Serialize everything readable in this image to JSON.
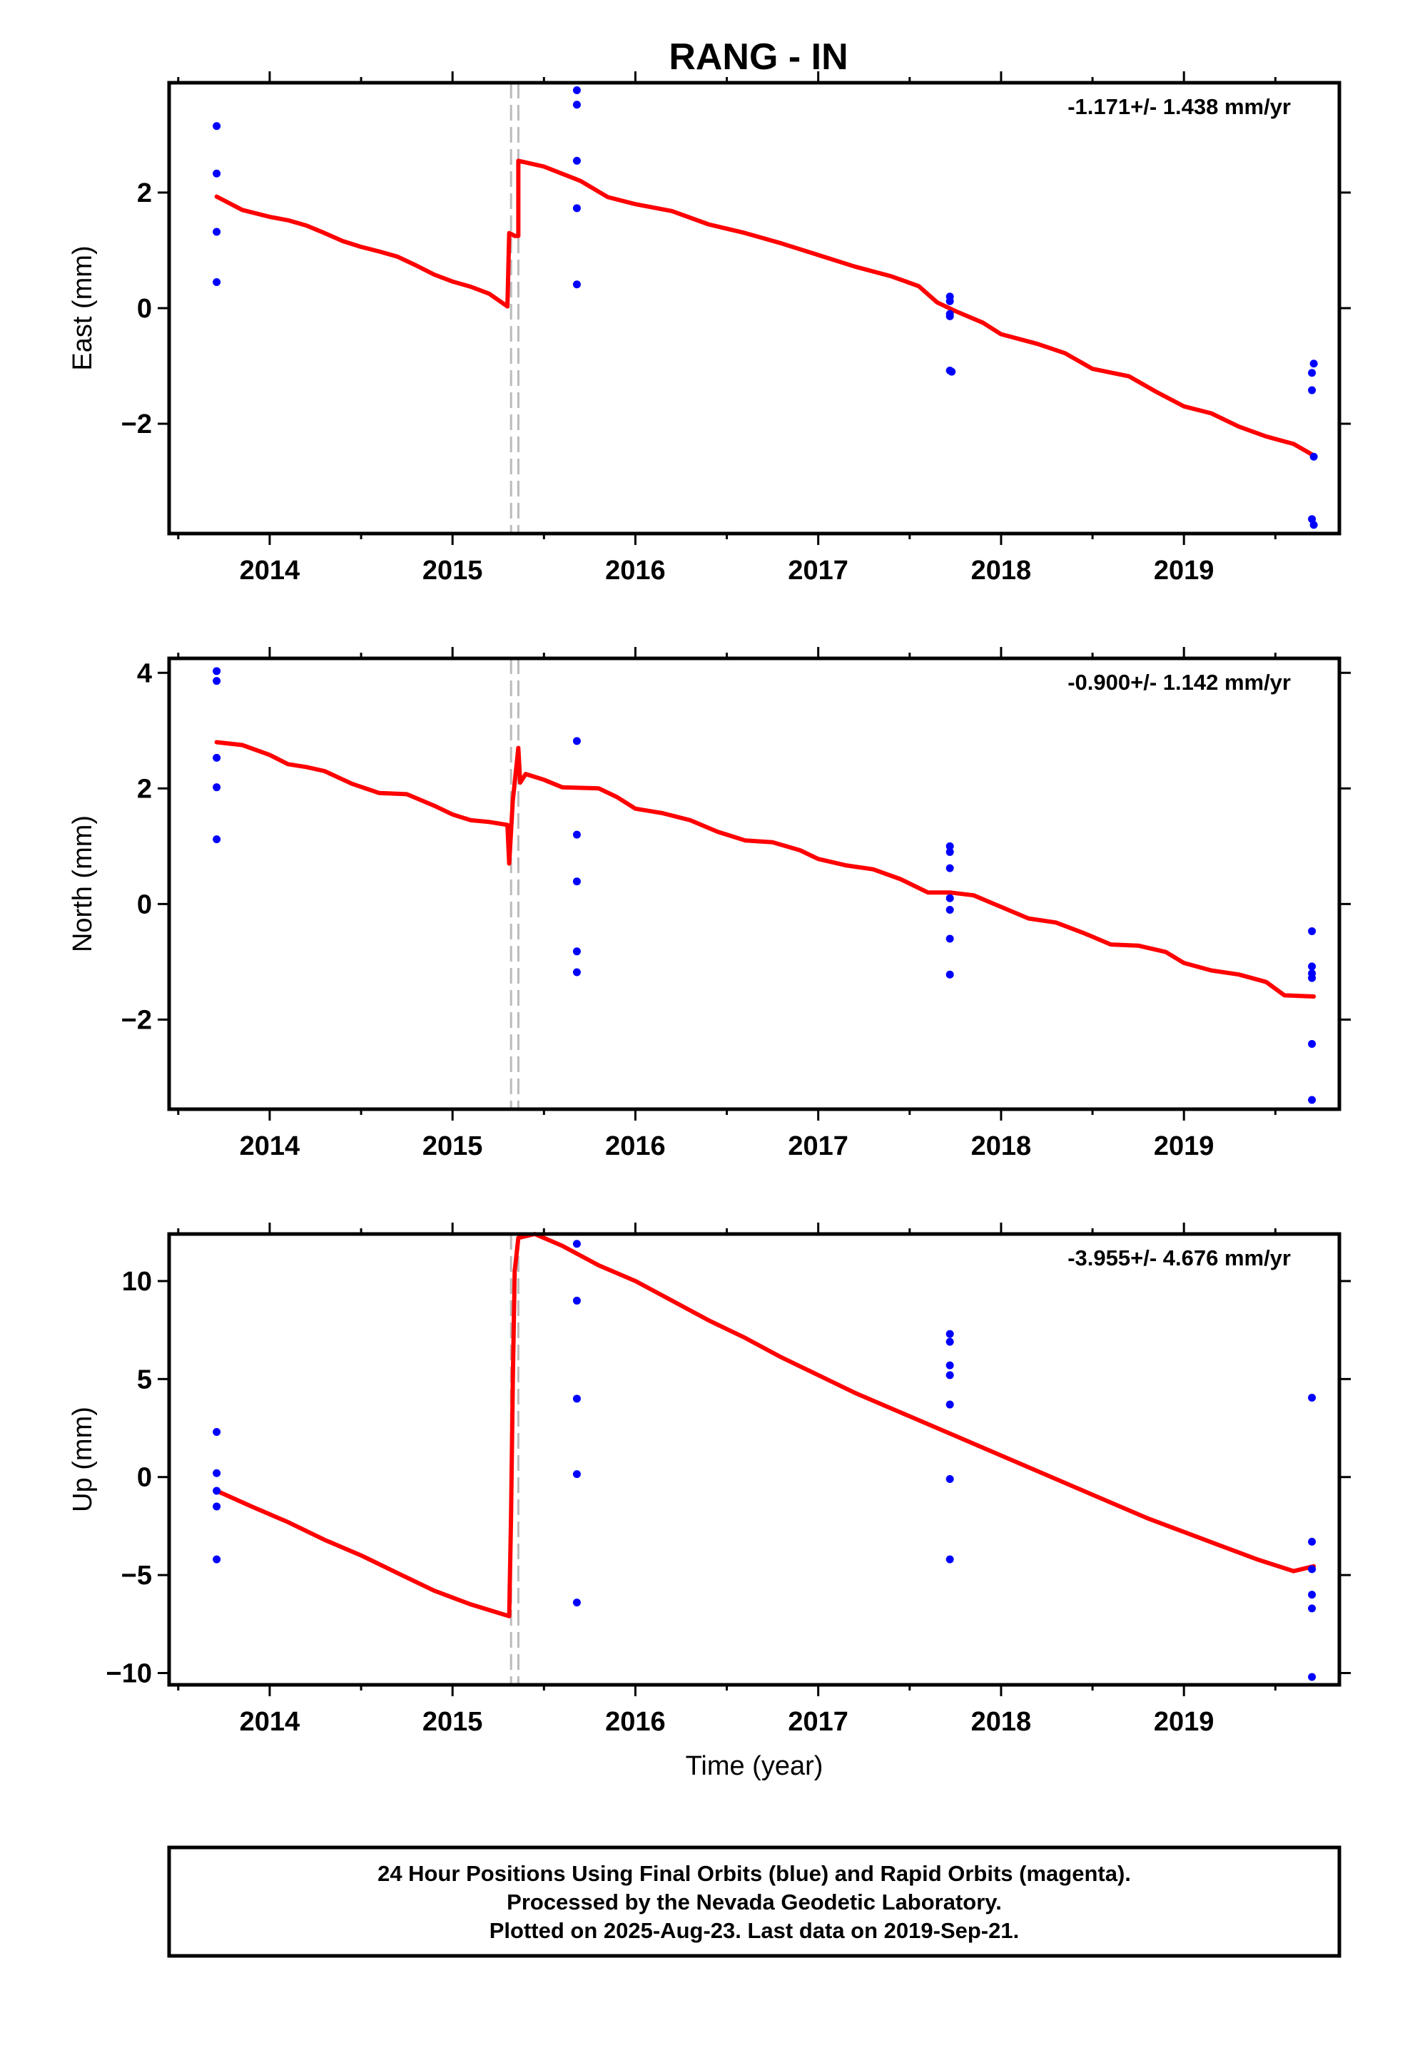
{
  "title": "RANG - IN",
  "footer": {
    "lines": [
      "24 Hour Positions Using Final Orbits (blue) and Rapid Orbits (magenta).",
      "Processed by the Nevada Geodetic Laboratory.",
      "Plotted on 2025-Aug-23. Last data on 2019-Sep-21."
    ]
  },
  "colors": {
    "points": "#0000ff",
    "model": "#ff0000",
    "offset_lines": "#bbbbbb"
  },
  "chart_data": [
    {
      "type": "scatter",
      "ylabel": "East (mm)",
      "xlabel": "",
      "rate_label": "-1.171+/- 1.438 mm/yr",
      "xlim": [
        2013.45,
        2019.85
      ],
      "ylim": [
        -3.9,
        3.9
      ],
      "xticks": [
        2014,
        2015,
        2016,
        2017,
        2018,
        2019
      ],
      "yticks": [
        -2,
        0,
        2
      ],
      "ytick_labels": [
        "−2",
        "0",
        "2"
      ],
      "offsets": [
        2015.32,
        2015.36
      ],
      "points": [
        [
          2013.71,
          3.15
        ],
        [
          2013.71,
          2.33
        ],
        [
          2013.71,
          1.32
        ],
        [
          2013.71,
          0.45
        ],
        [
          2015.68,
          3.77
        ],
        [
          2015.68,
          3.52
        ],
        [
          2015.68,
          2.55
        ],
        [
          2015.68,
          1.73
        ],
        [
          2015.68,
          0.41
        ],
        [
          2017.72,
          0.2
        ],
        [
          2017.72,
          0.12
        ],
        [
          2017.72,
          -0.1
        ],
        [
          2017.72,
          -0.14
        ],
        [
          2017.72,
          -1.08
        ],
        [
          2017.73,
          -1.1
        ],
        [
          2019.71,
          -0.96
        ],
        [
          2019.7,
          -1.12
        ],
        [
          2019.7,
          -1.42
        ],
        [
          2019.71,
          -2.57
        ],
        [
          2019.7,
          -3.65
        ],
        [
          2019.71,
          -3.75
        ]
      ],
      "model": [
        [
          2013.71,
          1.93
        ],
        [
          2013.85,
          1.7
        ],
        [
          2014.0,
          1.58
        ],
        [
          2014.1,
          1.52
        ],
        [
          2014.2,
          1.43
        ],
        [
          2014.3,
          1.3
        ],
        [
          2014.4,
          1.16
        ],
        [
          2014.5,
          1.06
        ],
        [
          2014.6,
          0.98
        ],
        [
          2014.7,
          0.89
        ],
        [
          2014.8,
          0.74
        ],
        [
          2014.9,
          0.58
        ],
        [
          2015.0,
          0.46
        ],
        [
          2015.1,
          0.37
        ],
        [
          2015.2,
          0.25
        ],
        [
          2015.3,
          0.03
        ],
        [
          2015.31,
          1.3
        ],
        [
          2015.34,
          1.25
        ],
        [
          2015.36,
          1.25
        ],
        [
          2015.36,
          2.55
        ],
        [
          2015.5,
          2.45
        ],
        [
          2015.7,
          2.2
        ],
        [
          2015.85,
          1.92
        ],
        [
          2016.0,
          1.8
        ],
        [
          2016.2,
          1.68
        ],
        [
          2016.4,
          1.45
        ],
        [
          2016.6,
          1.3
        ],
        [
          2016.8,
          1.12
        ],
        [
          2017.0,
          0.92
        ],
        [
          2017.2,
          0.72
        ],
        [
          2017.4,
          0.55
        ],
        [
          2017.55,
          0.38
        ],
        [
          2017.65,
          0.1
        ],
        [
          2017.75,
          -0.05
        ],
        [
          2017.9,
          -0.25
        ],
        [
          2018.0,
          -0.45
        ],
        [
          2018.2,
          -0.62
        ],
        [
          2018.35,
          -0.78
        ],
        [
          2018.5,
          -1.05
        ],
        [
          2018.7,
          -1.18
        ],
        [
          2018.85,
          -1.45
        ],
        [
          2019.0,
          -1.7
        ],
        [
          2019.15,
          -1.82
        ],
        [
          2019.3,
          -2.05
        ],
        [
          2019.45,
          -2.22
        ],
        [
          2019.6,
          -2.35
        ],
        [
          2019.71,
          -2.55
        ]
      ]
    },
    {
      "type": "scatter",
      "ylabel": "North (mm)",
      "xlabel": "",
      "rate_label": "-0.900+/- 1.142 mm/yr",
      "xlim": [
        2013.45,
        2019.85
      ],
      "ylim": [
        -3.55,
        4.25
      ],
      "xticks": [
        2014,
        2015,
        2016,
        2017,
        2018,
        2019
      ],
      "yticks": [
        -2,
        0,
        2,
        4
      ],
      "ytick_labels": [
        "−2",
        "0",
        "2",
        "4"
      ],
      "offsets": [
        2015.32,
        2015.36
      ],
      "points": [
        [
          2013.71,
          4.03
        ],
        [
          2013.71,
          3.86
        ],
        [
          2013.71,
          2.53
        ],
        [
          2013.71,
          2.02
        ],
        [
          2013.71,
          1.12
        ],
        [
          2015.68,
          2.82
        ],
        [
          2015.68,
          1.2
        ],
        [
          2015.68,
          0.39
        ],
        [
          2015.68,
          -0.82
        ],
        [
          2015.68,
          -1.18
        ],
        [
          2017.72,
          1.0
        ],
        [
          2017.72,
          0.9
        ],
        [
          2017.72,
          0.62
        ],
        [
          2017.72,
          0.1
        ],
        [
          2017.72,
          -0.1
        ],
        [
          2017.72,
          -0.6
        ],
        [
          2017.72,
          -1.22
        ],
        [
          2019.7,
          -0.47
        ],
        [
          2019.7,
          -1.08
        ],
        [
          2019.7,
          -1.2
        ],
        [
          2019.7,
          -1.28
        ],
        [
          2019.7,
          -2.42
        ],
        [
          2019.7,
          -3.39
        ]
      ],
      "model": [
        [
          2013.71,
          2.8
        ],
        [
          2013.85,
          2.75
        ],
        [
          2014.0,
          2.58
        ],
        [
          2014.1,
          2.42
        ],
        [
          2014.2,
          2.37
        ],
        [
          2014.3,
          2.3
        ],
        [
          2014.45,
          2.08
        ],
        [
          2014.6,
          1.92
        ],
        [
          2014.75,
          1.9
        ],
        [
          2014.9,
          1.7
        ],
        [
          2015.0,
          1.55
        ],
        [
          2015.1,
          1.45
        ],
        [
          2015.2,
          1.42
        ],
        [
          2015.3,
          1.37
        ],
        [
          2015.31,
          0.7
        ],
        [
          2015.33,
          1.8
        ],
        [
          2015.35,
          2.4
        ],
        [
          2015.36,
          2.7
        ],
        [
          2015.37,
          2.1
        ],
        [
          2015.4,
          2.25
        ],
        [
          2015.5,
          2.15
        ],
        [
          2015.6,
          2.02
        ],
        [
          2015.8,
          2.0
        ],
        [
          2015.9,
          1.85
        ],
        [
          2016.0,
          1.65
        ],
        [
          2016.15,
          1.57
        ],
        [
          2016.3,
          1.45
        ],
        [
          2016.45,
          1.25
        ],
        [
          2016.6,
          1.1
        ],
        [
          2016.75,
          1.07
        ],
        [
          2016.9,
          0.93
        ],
        [
          2017.0,
          0.78
        ],
        [
          2017.15,
          0.67
        ],
        [
          2017.3,
          0.6
        ],
        [
          2017.45,
          0.43
        ],
        [
          2017.6,
          0.2
        ],
        [
          2017.72,
          0.2
        ],
        [
          2017.85,
          0.15
        ],
        [
          2018.0,
          -0.05
        ],
        [
          2018.15,
          -0.25
        ],
        [
          2018.3,
          -0.32
        ],
        [
          2018.45,
          -0.5
        ],
        [
          2018.6,
          -0.7
        ],
        [
          2018.75,
          -0.72
        ],
        [
          2018.9,
          -0.83
        ],
        [
          2019.0,
          -1.02
        ],
        [
          2019.15,
          -1.15
        ],
        [
          2019.3,
          -1.22
        ],
        [
          2019.45,
          -1.35
        ],
        [
          2019.55,
          -1.58
        ],
        [
          2019.71,
          -1.6
        ]
      ]
    },
    {
      "type": "scatter",
      "ylabel": "Up (mm)",
      "xlabel": "Time (year)",
      "rate_label": "-3.955+/- 4.676 mm/yr",
      "xlim": [
        2013.45,
        2019.85
      ],
      "ylim": [
        -10.6,
        12.4
      ],
      "xticks": [
        2014,
        2015,
        2016,
        2017,
        2018,
        2019
      ],
      "yticks": [
        -10,
        -5,
        0,
        5,
        10
      ],
      "ytick_labels": [
        "−10",
        "−5",
        "0",
        "5",
        "10"
      ],
      "offsets": [
        2015.32,
        2015.36
      ],
      "points": [
        [
          2013.71,
          2.3
        ],
        [
          2013.71,
          0.2
        ],
        [
          2013.71,
          -0.7
        ],
        [
          2013.71,
          -1.5
        ],
        [
          2013.71,
          -4.2
        ],
        [
          2015.68,
          11.9
        ],
        [
          2015.68,
          9.0
        ],
        [
          2015.68,
          4.0
        ],
        [
          2015.68,
          0.15
        ],
        [
          2015.68,
          -6.4
        ],
        [
          2017.72,
          7.3
        ],
        [
          2017.72,
          6.9
        ],
        [
          2017.72,
          5.7
        ],
        [
          2017.72,
          5.2
        ],
        [
          2017.72,
          3.7
        ],
        [
          2017.72,
          -0.1
        ],
        [
          2017.72,
          -4.2
        ],
        [
          2019.7,
          4.05
        ],
        [
          2019.7,
          -3.3
        ],
        [
          2019.7,
          -4.7
        ],
        [
          2019.7,
          -6.0
        ],
        [
          2019.7,
          -6.7
        ],
        [
          2019.7,
          -10.2
        ]
      ],
      "model": [
        [
          2013.71,
          -0.7
        ],
        [
          2013.9,
          -1.5
        ],
        [
          2014.1,
          -2.3
        ],
        [
          2014.3,
          -3.2
        ],
        [
          2014.5,
          -4.0
        ],
        [
          2014.7,
          -4.9
        ],
        [
          2014.9,
          -5.8
        ],
        [
          2015.1,
          -6.5
        ],
        [
          2015.31,
          -7.1
        ],
        [
          2015.32,
          -2.0
        ],
        [
          2015.33,
          5.0
        ],
        [
          2015.34,
          10.5
        ],
        [
          2015.36,
          12.2
        ],
        [
          2015.45,
          12.4
        ],
        [
          2015.6,
          11.8
        ],
        [
          2015.8,
          10.8
        ],
        [
          2016.0,
          10.0
        ],
        [
          2016.2,
          9.0
        ],
        [
          2016.4,
          8.0
        ],
        [
          2016.6,
          7.1
        ],
        [
          2016.8,
          6.1
        ],
        [
          2017.0,
          5.2
        ],
        [
          2017.2,
          4.3
        ],
        [
          2017.4,
          3.5
        ],
        [
          2017.6,
          2.7
        ],
        [
          2017.8,
          1.9
        ],
        [
          2018.0,
          1.1
        ],
        [
          2018.2,
          0.3
        ],
        [
          2018.4,
          -0.5
        ],
        [
          2018.6,
          -1.3
        ],
        [
          2018.8,
          -2.1
        ],
        [
          2019.0,
          -2.8
        ],
        [
          2019.2,
          -3.5
        ],
        [
          2019.4,
          -4.2
        ],
        [
          2019.6,
          -4.8
        ],
        [
          2019.71,
          -4.55
        ]
      ]
    }
  ]
}
